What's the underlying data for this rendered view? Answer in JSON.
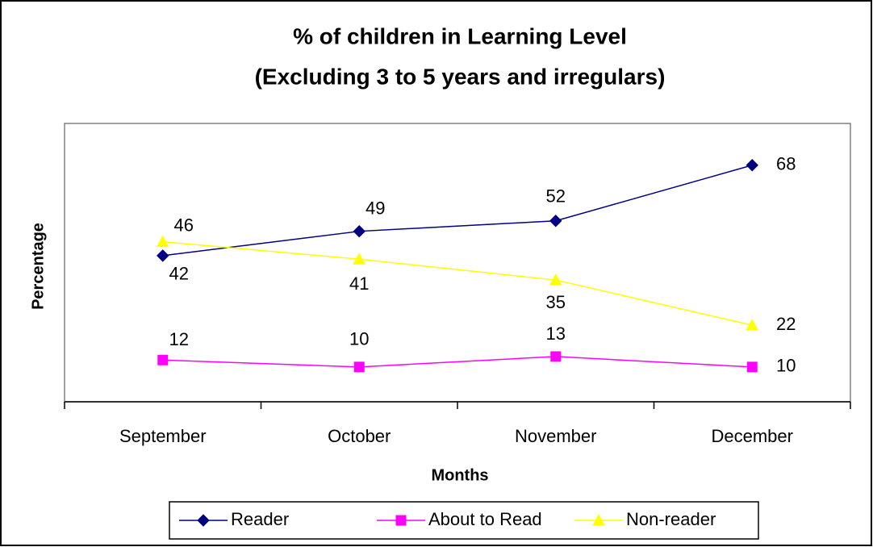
{
  "chart_data": {
    "type": "line",
    "title": "% of children in Learning Level",
    "subtitle": "(Excluding 3 to 5 years and irregulars)",
    "x_label": "Months",
    "y_label": "Percentage",
    "categories": [
      "September",
      "October",
      "November",
      "December"
    ],
    "series": [
      {
        "name": "Reader",
        "color": "#000080",
        "marker": "diamond",
        "values": [
          42,
          49,
          52,
          68
        ]
      },
      {
        "name": "About to Read",
        "color": "#ff00ff",
        "marker": "square",
        "values": [
          12,
          10,
          13,
          10
        ]
      },
      {
        "name": "Non-reader",
        "color": "#ffff00",
        "marker": "triangle",
        "values": [
          46,
          41,
          35,
          22
        ]
      }
    ],
    "ylim": [
      0,
      80
    ],
    "grid": false,
    "legend": "bottom"
  }
}
